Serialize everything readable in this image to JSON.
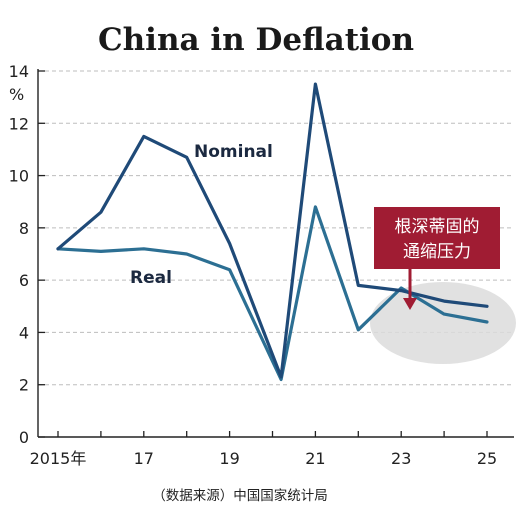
{
  "chart_data": {
    "type": "line",
    "title": "China in Deflation",
    "y_unit": "%",
    "ylim": [
      0,
      14
    ],
    "yticks": [
      0,
      2,
      4,
      6,
      8,
      10,
      12,
      14
    ],
    "xlim": [
      2015,
      2025
    ],
    "xticks": [
      {
        "value": 2015,
        "label": "2015年"
      },
      {
        "value": 2017,
        "label": "17"
      },
      {
        "value": 2019,
        "label": "19"
      },
      {
        "value": 2021,
        "label": "21"
      },
      {
        "value": 2023,
        "label": "23"
      },
      {
        "value": 2025,
        "label": "25"
      }
    ],
    "grid": "horizontal dashed",
    "series": [
      {
        "name": "Nominal",
        "color": "#1f4a78",
        "points": [
          [
            2015,
            7.2
          ],
          [
            2016,
            8.6
          ],
          [
            2017,
            11.5
          ],
          [
            2018,
            10.7
          ],
          [
            2019,
            7.4
          ],
          [
            2020.2,
            2.3
          ],
          [
            2021,
            13.5
          ],
          [
            2022,
            5.8
          ],
          [
            2023,
            5.6
          ],
          [
            2024,
            5.2
          ],
          [
            2025,
            5.0
          ]
        ]
      },
      {
        "name": "Real",
        "color": "#2c6f93",
        "points": [
          [
            2015,
            7.2
          ],
          [
            2016,
            7.1
          ],
          [
            2017,
            7.2
          ],
          [
            2018,
            7.0
          ],
          [
            2019,
            6.4
          ],
          [
            2020.2,
            2.2
          ],
          [
            2021,
            8.8
          ],
          [
            2022,
            4.1
          ],
          [
            2023,
            5.7
          ],
          [
            2024,
            4.7
          ],
          [
            2025,
            4.4
          ]
        ]
      }
    ],
    "annotation": {
      "text_lines": [
        "根深蒂固的",
        "通缩压力"
      ],
      "color": "#a01c33"
    },
    "source": "（数据来源）中国国家统计局"
  }
}
